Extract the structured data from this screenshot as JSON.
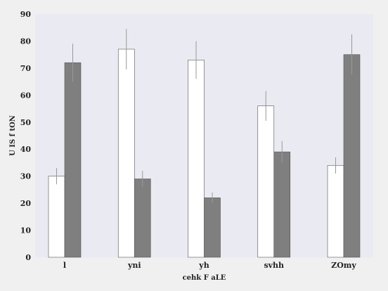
{
  "chart_data": {
    "type": "bar",
    "title": "",
    "xlabel": "cehk F aLE",
    "ylabel": "U IS f tON",
    "categories": [
      "l",
      "yni",
      "yh",
      "svhh",
      "ZOmy"
    ],
    "ylim": [
      0,
      90
    ],
    "yticks": [
      0,
      10,
      20,
      30,
      40,
      50,
      60,
      70,
      80,
      90
    ],
    "grid": false,
    "legend": "none",
    "series": [
      {
        "color": "#ffffff",
        "values": [
          30,
          77,
          73,
          56,
          34
        ],
        "errors": [
          3,
          7.5,
          7,
          5.5,
          3
        ]
      },
      {
        "color": "#7f7f7f",
        "values": [
          72,
          29,
          22,
          39,
          75
        ],
        "errors": [
          7,
          3,
          2,
          4,
          7.5
        ]
      }
    ],
    "colors": {
      "plot_background": "#eaeaf2",
      "page_background": "#f0f0f0",
      "error_bar": "#999999",
      "bar_edge": "#555555"
    }
  }
}
